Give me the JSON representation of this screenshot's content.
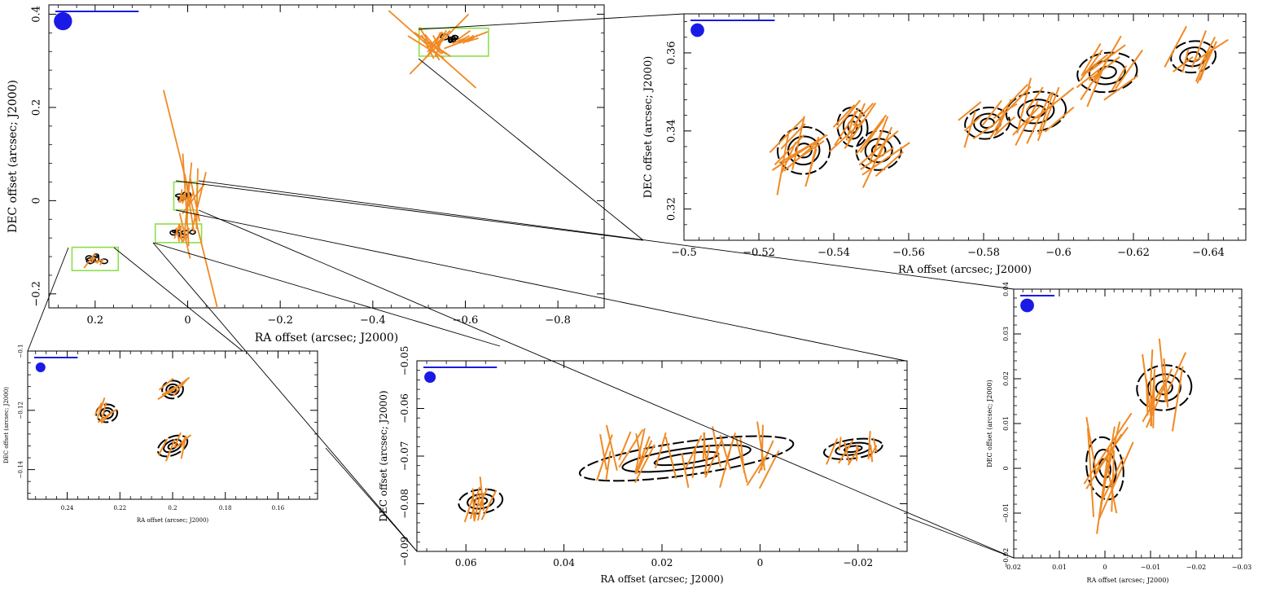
{
  "colors": {
    "contour": "#000000",
    "vector": "#f08a24",
    "beam": "#1a1ae6",
    "scale_bar": "#1a1ae6",
    "zoom_box": "#8be04a",
    "connector": "#000000"
  },
  "chart_data": [
    {
      "id": "overview",
      "type": "scatter",
      "description_type": "contour-polarization-map",
      "xlabel": "RA offset (arcsec; J2000)",
      "ylabel": "DEC offset (arcsec; J2000)",
      "xlim": [
        0.3,
        -0.9
      ],
      "ylim": [
        -0.23,
        0.42
      ],
      "xticks": [
        0.2,
        0,
        -0.2,
        -0.4,
        -0.6,
        -0.8
      ],
      "xtick_labels": [
        "0.2",
        "0",
        "−0.2",
        "−0.4",
        "−0.6",
        "−0.8"
      ],
      "yticks": [
        -0.2,
        0,
        0.2,
        0.4
      ],
      "ytick_labels": [
        "−0.2",
        "0",
        "0.2",
        "0.4"
      ],
      "zoom_boxes": [
        {
          "x": [
            -0.5,
            -0.65
          ],
          "y": [
            0.31,
            0.37
          ]
        },
        {
          "x": [
            0.03,
            -0.02
          ],
          "y": [
            -0.02,
            0.04
          ]
        },
        {
          "x": [
            0.07,
            -0.03
          ],
          "y": [
            -0.09,
            -0.05
          ]
        },
        {
          "x": [
            0.25,
            0.15
          ],
          "y": [
            -0.15,
            -0.1
          ]
        }
      ],
      "clumps": [
        {
          "x": -0.57,
          "y": 0.345
        },
        {
          "x": 0.0,
          "y": 0.01
        },
        {
          "x": 0.01,
          "y": -0.07
        },
        {
          "x": 0.2,
          "y": -0.125
        }
      ],
      "vectors": [
        {
          "x": -0.53,
          "y": 0.33,
          "angle": 135,
          "len": 0.25
        },
        {
          "x": -0.55,
          "y": 0.34,
          "angle": 60,
          "len": 0.18
        },
        {
          "x": -0.6,
          "y": 0.35,
          "angle": 20,
          "len": 0.1
        },
        {
          "x": -0.01,
          "y": 0.0,
          "angle": 95,
          "len": 0.5
        },
        {
          "x": 0.0,
          "y": 0.005,
          "angle": 70,
          "len": 0.08
        },
        {
          "x": 0.01,
          "y": -0.07,
          "angle": 85,
          "len": 0.1
        },
        {
          "x": 0.2,
          "y": -0.13,
          "angle": 40,
          "len": 0.04
        }
      ]
    },
    {
      "id": "zoom-top-right",
      "type": "scatter",
      "description_type": "contour-polarization-map",
      "xlabel": "RA offset (arcsec; J2000)",
      "ylabel": "DEC offset (arcsec; J2000)",
      "xlim": [
        -0.5,
        -0.65
      ],
      "ylim": [
        0.312,
        0.37
      ],
      "xticks": [
        -0.5,
        -0.52,
        -0.54,
        -0.56,
        -0.58,
        -0.6,
        -0.62,
        -0.64
      ],
      "xtick_labels": [
        "−0.5",
        "−0.52",
        "−0.54",
        "−0.56",
        "−0.58",
        "−0.6",
        "−0.62",
        "−0.64"
      ],
      "yticks": [
        0.32,
        0.34,
        0.36
      ],
      "ytick_labels": [
        "0.32",
        "0.34",
        "0.36"
      ],
      "clumps": [
        {
          "x": -0.532,
          "y": 0.335,
          "rx": 0.007,
          "ry": 0.006
        },
        {
          "x": -0.545,
          "y": 0.341,
          "rx": 0.004,
          "ry": 0.005
        },
        {
          "x": -0.552,
          "y": 0.335,
          "rx": 0.006,
          "ry": 0.005
        },
        {
          "x": -0.581,
          "y": 0.342,
          "rx": 0.006,
          "ry": 0.004
        },
        {
          "x": -0.594,
          "y": 0.345,
          "rx": 0.008,
          "ry": 0.005
        },
        {
          "x": -0.613,
          "y": 0.355,
          "rx": 0.008,
          "ry": 0.005
        },
        {
          "x": -0.636,
          "y": 0.359,
          "rx": 0.006,
          "ry": 0.004
        }
      ]
    },
    {
      "id": "zoom-bottom-left",
      "type": "scatter",
      "description_type": "contour-polarization-map",
      "xlabel": "RA offset (arcsec; J2000)",
      "ylabel": "DEC offset (arcsec; J2000)",
      "xlim": [
        0.255,
        0.145
      ],
      "ylim": [
        -0.15,
        -0.1
      ],
      "xticks": [
        0.24,
        0.22,
        0.2,
        0.18,
        0.16
      ],
      "xtick_labels": [
        "0.24",
        "0.22",
        "0.2",
        "0.18",
        "0.16"
      ],
      "yticks": [
        -0.14,
        -0.12,
        -0.1
      ],
      "ytick_labels": [
        "−0.14",
        "−0.12",
        "−0.1"
      ],
      "clumps": [
        {
          "x": 0.225,
          "y": -0.121,
          "rx": 0.004,
          "ry": 0.003
        },
        {
          "x": 0.2,
          "y": -0.113,
          "rx": 0.004,
          "ry": 0.003
        },
        {
          "x": 0.2,
          "y": -0.132,
          "rx": 0.006,
          "ry": 0.003
        }
      ]
    },
    {
      "id": "zoom-bottom-center",
      "type": "scatter",
      "description_type": "contour-polarization-map",
      "xlabel": "RA offset (arcsec; J2000)",
      "ylabel": "DEC offset (arcsec; J2000)",
      "xlim": [
        0.07,
        -0.03
      ],
      "ylim": [
        -0.09,
        -0.05
      ],
      "xticks": [
        0.06,
        0.04,
        0.02,
        0,
        -0.02
      ],
      "xtick_labels": [
        "0.06",
        "0.04",
        "0.02",
        "0",
        "−0.02"
      ],
      "yticks": [
        -0.09,
        -0.08,
        -0.07,
        -0.06,
        -0.05
      ],
      "ytick_labels": [
        "−0.09",
        "−0.08",
        "−0.07",
        "−0.06",
        "−0.05"
      ],
      "clumps": [
        {
          "x": 0.057,
          "y": -0.0795,
          "rx": 0.0045,
          "ry": 0.0025
        },
        {
          "x": 0.015,
          "y": -0.0705,
          "rx": 0.022,
          "ry": 0.0035
        },
        {
          "x": -0.019,
          "y": -0.0685,
          "rx": 0.006,
          "ry": 0.002
        }
      ]
    },
    {
      "id": "zoom-right",
      "type": "scatter",
      "description_type": "contour-polarization-map",
      "xlabel": "RA offset (arcsec; J2000)",
      "ylabel": "DEC offset (arcsec; J2000)",
      "xlim": [
        0.02,
        -0.03
      ],
      "ylim": [
        -0.02,
        0.04
      ],
      "xticks": [
        0.02,
        0.01,
        0,
        -0.01,
        -0.02,
        -0.03
      ],
      "xtick_labels": [
        "0.02",
        "0.01",
        "0",
        "−0.01",
        "−0.02",
        "−0.03"
      ],
      "yticks": [
        -0.02,
        -0.01,
        0,
        0.01,
        0.02,
        0.03,
        0.04
      ],
      "ytick_labels": [
        "−0.02",
        "−0.01",
        "0",
        "0.01",
        "0.02",
        "0.03",
        "0.04"
      ],
      "clumps": [
        {
          "x": 0.0,
          "y": 0.0,
          "rx": 0.004,
          "ry": 0.007
        },
        {
          "x": -0.013,
          "y": 0.018,
          "rx": 0.006,
          "ry": 0.005
        }
      ]
    }
  ]
}
